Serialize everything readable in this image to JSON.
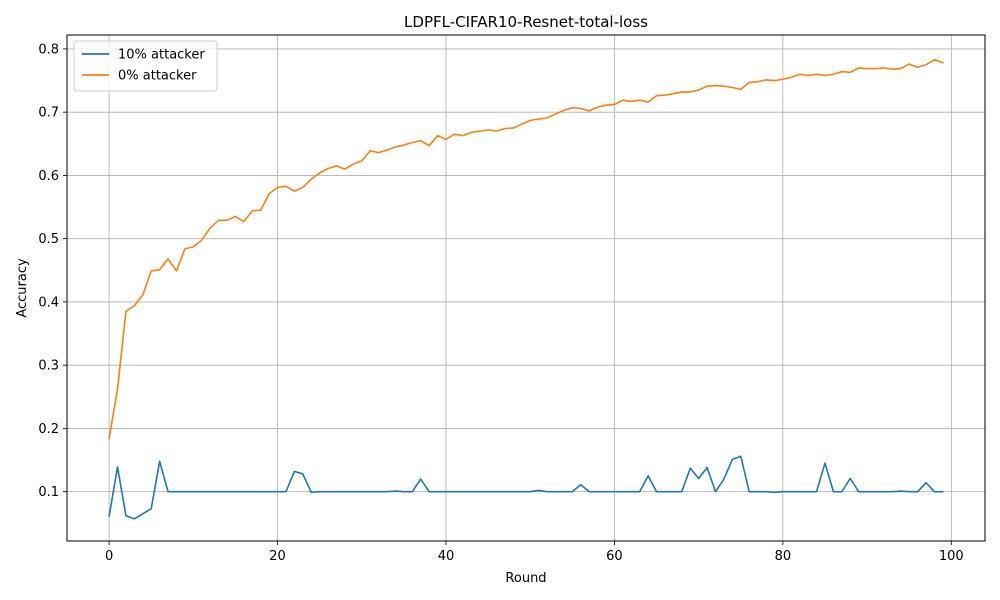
{
  "chart_data": {
    "type": "line",
    "title": "LDPFL-CIFAR10-Resnet-total-loss",
    "xlabel": "Round",
    "ylabel": "Accuracy",
    "xlim": [
      -5,
      104
    ],
    "ylim": [
      0.022,
      0.822
    ],
    "xticks": [
      0,
      20,
      40,
      60,
      80,
      100
    ],
    "xtick_labels": [
      "0",
      "20",
      "40",
      "60",
      "80",
      "100"
    ],
    "yticks": [
      0.1,
      0.2,
      0.3,
      0.4,
      0.5,
      0.6,
      0.7,
      0.8
    ],
    "ytick_labels": [
      "0.1",
      "0.2",
      "0.3",
      "0.4",
      "0.5",
      "0.6",
      "0.7",
      "0.8"
    ],
    "grid": true,
    "legend_position": "top-left",
    "series": [
      {
        "name": "10% attacker",
        "color": "#1f77b4",
        "x": [
          0,
          1,
          2,
          3,
          4,
          5,
          6,
          7,
          8,
          9,
          10,
          11,
          12,
          13,
          14,
          15,
          16,
          17,
          18,
          19,
          20,
          21,
          22,
          23,
          24,
          25,
          26,
          27,
          28,
          29,
          30,
          31,
          32,
          33,
          34,
          35,
          36,
          37,
          38,
          39,
          40,
          41,
          42,
          43,
          44,
          45,
          46,
          47,
          48,
          49,
          50,
          51,
          52,
          53,
          54,
          55,
          56,
          57,
          58,
          59,
          60,
          61,
          62,
          63,
          64,
          65,
          66,
          67,
          68,
          69,
          70,
          71,
          72,
          73,
          74,
          75,
          76,
          77,
          78,
          79,
          80,
          81,
          82,
          83,
          84,
          85,
          86,
          87,
          88,
          89,
          90,
          91,
          92,
          93,
          94,
          95,
          96,
          97,
          98,
          99
        ],
        "values": [
          0.061,
          0.139,
          0.062,
          0.057,
          0.065,
          0.073,
          0.148,
          0.1,
          0.1,
          0.1,
          0.1,
          0.1,
          0.1,
          0.1,
          0.1,
          0.1,
          0.1,
          0.1,
          0.1,
          0.1,
          0.1,
          0.1,
          0.132,
          0.128,
          0.099,
          0.1,
          0.1,
          0.1,
          0.1,
          0.1,
          0.1,
          0.1,
          0.1,
          0.1,
          0.101,
          0.1,
          0.1,
          0.12,
          0.1,
          0.1,
          0.1,
          0.1,
          0.1,
          0.1,
          0.1,
          0.1,
          0.1,
          0.1,
          0.1,
          0.1,
          0.1,
          0.102,
          0.1,
          0.1,
          0.1,
          0.1,
          0.111,
          0.1,
          0.1,
          0.1,
          0.1,
          0.1,
          0.1,
          0.1,
          0.125,
          0.1,
          0.1,
          0.1,
          0.1,
          0.137,
          0.121,
          0.138,
          0.1,
          0.12,
          0.151,
          0.156,
          0.1,
          0.1,
          0.1,
          0.099,
          0.1,
          0.1,
          0.1,
          0.1,
          0.1,
          0.145,
          0.1,
          0.1,
          0.121,
          0.1,
          0.1,
          0.1,
          0.1,
          0.1,
          0.101,
          0.1,
          0.1,
          0.114,
          0.1,
          0.1
        ]
      },
      {
        "name": "0% attacker",
        "color": "#ff7f0e",
        "x": [
          0,
          1,
          2,
          3,
          4,
          5,
          6,
          7,
          8,
          9,
          10,
          11,
          12,
          13,
          14,
          15,
          16,
          17,
          18,
          19,
          20,
          21,
          22,
          23,
          24,
          25,
          26,
          27,
          28,
          29,
          30,
          31,
          32,
          33,
          34,
          35,
          36,
          37,
          38,
          39,
          40,
          41,
          42,
          43,
          44,
          45,
          46,
          47,
          48,
          49,
          50,
          51,
          52,
          53,
          54,
          55,
          56,
          57,
          58,
          59,
          60,
          61,
          62,
          63,
          64,
          65,
          66,
          67,
          68,
          69,
          70,
          71,
          72,
          73,
          74,
          75,
          76,
          77,
          78,
          79,
          80,
          81,
          82,
          83,
          84,
          85,
          86,
          87,
          88,
          89,
          90,
          91,
          92,
          93,
          94,
          95,
          96,
          97,
          98,
          99
        ],
        "values": [
          0.184,
          0.262,
          0.385,
          0.394,
          0.411,
          0.449,
          0.451,
          0.468,
          0.449,
          0.484,
          0.487,
          0.498,
          0.517,
          0.529,
          0.529,
          0.535,
          0.527,
          0.544,
          0.545,
          0.571,
          0.581,
          0.583,
          0.575,
          0.581,
          0.594,
          0.604,
          0.611,
          0.615,
          0.61,
          0.618,
          0.623,
          0.639,
          0.636,
          0.64,
          0.645,
          0.648,
          0.652,
          0.655,
          0.647,
          0.663,
          0.657,
          0.665,
          0.663,
          0.668,
          0.67,
          0.672,
          0.67,
          0.674,
          0.675,
          0.681,
          0.687,
          0.689,
          0.691,
          0.697,
          0.703,
          0.707,
          0.706,
          0.702,
          0.708,
          0.711,
          0.712,
          0.719,
          0.717,
          0.719,
          0.716,
          0.726,
          0.727,
          0.729,
          0.732,
          0.732,
          0.735,
          0.741,
          0.742,
          0.741,
          0.739,
          0.736,
          0.747,
          0.748,
          0.751,
          0.75,
          0.752,
          0.755,
          0.76,
          0.758,
          0.76,
          0.758,
          0.76,
          0.764,
          0.763,
          0.77,
          0.769,
          0.769,
          0.77,
          0.768,
          0.769,
          0.776,
          0.771,
          0.775,
          0.783,
          0.778
        ]
      }
    ]
  }
}
